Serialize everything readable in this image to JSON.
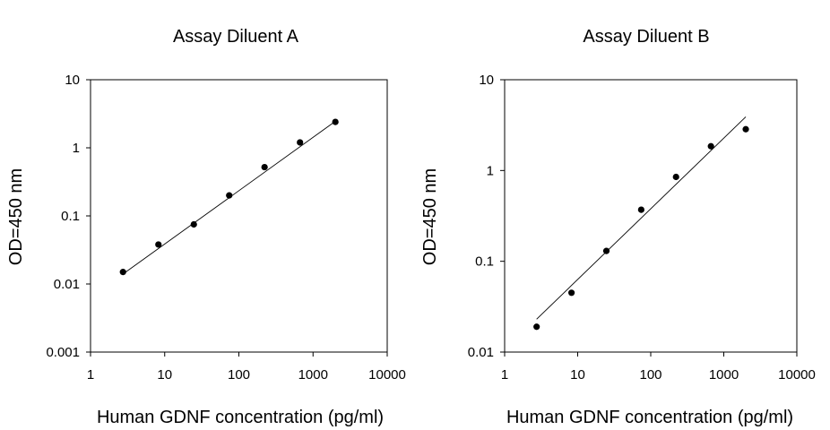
{
  "chart_data": [
    {
      "type": "scatter",
      "title": "Assay Diluent A",
      "xlabel": "Human GDNF concentration (pg/ml)",
      "ylabel": "OD=450 nm",
      "xscale": "log",
      "yscale": "log",
      "xlim": [
        1,
        10000
      ],
      "ylim": [
        0.001,
        10
      ],
      "xticks": [
        "1",
        "10",
        "100",
        "1000",
        "10000"
      ],
      "yticks": [
        "0.001",
        "0.01",
        "0.1",
        "1",
        "10"
      ],
      "grid": false,
      "series": [
        {
          "x": [
            2.74,
            8.23,
            24.7,
            74.1,
            222,
            667,
            2000
          ],
          "y": [
            0.015,
            0.038,
            0.075,
            0.2,
            0.52,
            1.2,
            2.4
          ]
        }
      ],
      "fit_line": {
        "x": [
          2.74,
          2000
        ],
        "y": [
          0.014,
          2.45
        ]
      }
    },
    {
      "type": "scatter",
      "title": "Assay Diluent B",
      "xlabel": "Human GDNF concentration (pg/ml)",
      "ylabel": "OD=450 nm",
      "xscale": "log",
      "yscale": "log",
      "xlim": [
        1,
        10000
      ],
      "ylim": [
        0.01,
        10
      ],
      "xticks": [
        "1",
        "10",
        "100",
        "1000",
        "10000"
      ],
      "yticks": [
        "0.01",
        "0.1",
        "1",
        "10"
      ],
      "grid": false,
      "series": [
        {
          "x": [
            2.74,
            8.23,
            24.7,
            74.1,
            222,
            667,
            2000
          ],
          "y": [
            0.019,
            0.045,
            0.13,
            0.37,
            0.85,
            1.85,
            2.85
          ]
        }
      ],
      "fit_line": {
        "x": [
          2.74,
          2000
        ],
        "y": [
          0.023,
          3.9
        ]
      }
    }
  ]
}
